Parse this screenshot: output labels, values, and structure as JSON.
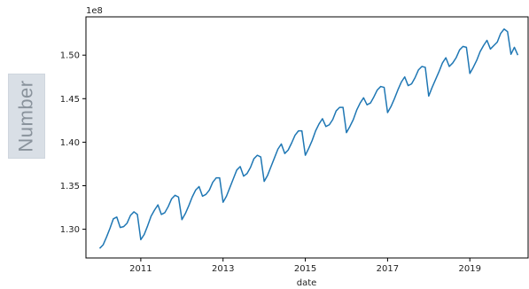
{
  "chart_data": {
    "type": "line",
    "title": "",
    "xlabel": "date",
    "ylabel": "Number",
    "offset_label": "1e8",
    "color": "#1f77b4",
    "grid": false,
    "legend": "none",
    "xlim": [
      "2009-09-01",
      "2020-06-01"
    ],
    "ylim": [
      1.267,
      1.544
    ],
    "xticks": [
      "2011",
      "2013",
      "2015",
      "2017",
      "2019"
    ],
    "yticks": [
      "1.30",
      "1.35",
      "1.40",
      "1.45",
      "1.50"
    ],
    "x": [
      "2010-01",
      "2010-02",
      "2010-03",
      "2010-04",
      "2010-05",
      "2010-06",
      "2010-07",
      "2010-08",
      "2010-09",
      "2010-10",
      "2010-11",
      "2010-12",
      "2011-01",
      "2011-02",
      "2011-03",
      "2011-04",
      "2011-05",
      "2011-06",
      "2011-07",
      "2011-08",
      "2011-09",
      "2011-10",
      "2011-11",
      "2011-12",
      "2012-01",
      "2012-02",
      "2012-03",
      "2012-04",
      "2012-05",
      "2012-06",
      "2012-07",
      "2012-08",
      "2012-09",
      "2012-10",
      "2012-11",
      "2012-12",
      "2013-01",
      "2013-02",
      "2013-03",
      "2013-04",
      "2013-05",
      "2013-06",
      "2013-07",
      "2013-08",
      "2013-09",
      "2013-10",
      "2013-11",
      "2013-12",
      "2014-01",
      "2014-02",
      "2014-03",
      "2014-04",
      "2014-05",
      "2014-06",
      "2014-07",
      "2014-08",
      "2014-09",
      "2014-10",
      "2014-11",
      "2014-12",
      "2015-01",
      "2015-02",
      "2015-03",
      "2015-04",
      "2015-05",
      "2015-06",
      "2015-07",
      "2015-08",
      "2015-09",
      "2015-10",
      "2015-11",
      "2015-12",
      "2016-01",
      "2016-02",
      "2016-03",
      "2016-04",
      "2016-05",
      "2016-06",
      "2016-07",
      "2016-08",
      "2016-09",
      "2016-10",
      "2016-11",
      "2016-12",
      "2017-01",
      "2017-02",
      "2017-03",
      "2017-04",
      "2017-05",
      "2017-06",
      "2017-07",
      "2017-08",
      "2017-09",
      "2017-10",
      "2017-11",
      "2017-12",
      "2018-01",
      "2018-02",
      "2018-03",
      "2018-04",
      "2018-05",
      "2018-06",
      "2018-07",
      "2018-08",
      "2018-09",
      "2018-10",
      "2018-11",
      "2018-12",
      "2019-01",
      "2019-02",
      "2019-03",
      "2019-04",
      "2019-05",
      "2019-06",
      "2019-07",
      "2019-08",
      "2019-09",
      "2019-10",
      "2019-11",
      "2019-12",
      "2020-01",
      "2020-02",
      "2020-03"
    ],
    "series": [
      {
        "values": [
          1.278,
          1.282,
          1.291,
          1.301,
          1.312,
          1.314,
          1.302,
          1.303,
          1.307,
          1.316,
          1.32,
          1.317,
          1.288,
          1.294,
          1.304,
          1.315,
          1.322,
          1.328,
          1.317,
          1.319,
          1.326,
          1.335,
          1.339,
          1.337,
          1.311,
          1.318,
          1.327,
          1.337,
          1.345,
          1.349,
          1.338,
          1.34,
          1.345,
          1.354,
          1.359,
          1.359,
          1.331,
          1.338,
          1.348,
          1.358,
          1.368,
          1.372,
          1.361,
          1.364,
          1.371,
          1.381,
          1.385,
          1.383,
          1.355,
          1.362,
          1.372,
          1.382,
          1.392,
          1.398,
          1.387,
          1.391,
          1.399,
          1.408,
          1.413,
          1.413,
          1.385,
          1.393,
          1.402,
          1.413,
          1.421,
          1.427,
          1.418,
          1.42,
          1.426,
          1.436,
          1.44,
          1.44,
          1.411,
          1.418,
          1.426,
          1.437,
          1.445,
          1.451,
          1.443,
          1.445,
          1.452,
          1.46,
          1.464,
          1.463,
          1.434,
          1.441,
          1.45,
          1.46,
          1.469,
          1.475,
          1.465,
          1.467,
          1.474,
          1.483,
          1.487,
          1.486,
          1.453,
          1.463,
          1.472,
          1.481,
          1.491,
          1.497,
          1.487,
          1.491,
          1.497,
          1.506,
          1.51,
          1.509,
          1.479,
          1.486,
          1.494,
          1.504,
          1.511,
          1.517,
          1.507,
          1.511,
          1.515,
          1.525,
          1.53,
          1.527,
          1.501,
          1.509,
          1.5
        ]
      }
    ]
  }
}
